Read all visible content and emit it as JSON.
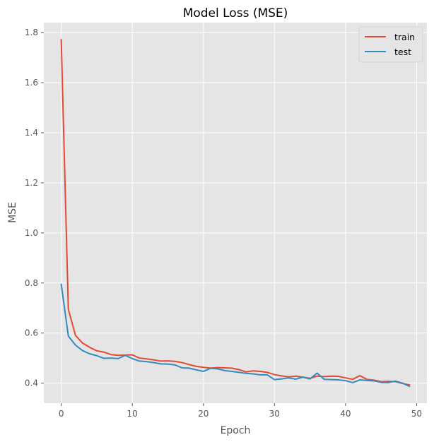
{
  "chart_data": {
    "type": "line",
    "title": "Model Loss (MSE)",
    "xlabel": "Epoch",
    "ylabel": "MSE",
    "xlim": [
      -2.45,
      51.45
    ],
    "ylim": [
      0.32,
      1.84
    ],
    "xticks": [
      0,
      10,
      20,
      30,
      40,
      50
    ],
    "yticks": [
      0.4,
      0.6,
      0.8,
      1.0,
      1.2,
      1.4,
      1.6,
      1.8
    ],
    "ytick_labels": [
      "0.4",
      "0.6",
      "0.8",
      "1.0",
      "1.2",
      "1.4",
      "1.6",
      "1.8"
    ],
    "grid": true,
    "legend_position": "top-right",
    "series": [
      {
        "name": "train",
        "color": "#E24A33",
        "x": [
          0,
          1,
          2,
          3,
          4,
          5,
          6,
          7,
          8,
          9,
          10,
          11,
          12,
          13,
          14,
          15,
          16,
          17,
          18,
          19,
          20,
          21,
          22,
          23,
          24,
          25,
          26,
          27,
          28,
          29,
          30,
          31,
          32,
          33,
          34,
          35,
          36,
          37,
          38,
          39,
          40,
          41,
          42,
          43,
          44,
          45,
          46,
          47,
          48,
          49
        ],
        "values": [
          1.772,
          0.695,
          0.591,
          0.56,
          0.543,
          0.529,
          0.524,
          0.514,
          0.511,
          0.512,
          0.513,
          0.5,
          0.497,
          0.493,
          0.488,
          0.489,
          0.487,
          0.482,
          0.474,
          0.467,
          0.463,
          0.46,
          0.462,
          0.461,
          0.46,
          0.454,
          0.445,
          0.449,
          0.447,
          0.443,
          0.434,
          0.429,
          0.425,
          0.428,
          0.424,
          0.419,
          0.428,
          0.426,
          0.428,
          0.427,
          0.421,
          0.415,
          0.43,
          0.415,
          0.412,
          0.406,
          0.407,
          0.406,
          0.399,
          0.393
        ]
      },
      {
        "name": "test",
        "color": "#348ABD",
        "x": [
          0,
          1,
          2,
          3,
          4,
          5,
          6,
          7,
          8,
          9,
          10,
          11,
          12,
          13,
          14,
          15,
          16,
          17,
          18,
          19,
          20,
          21,
          22,
          23,
          24,
          25,
          26,
          27,
          28,
          29,
          30,
          31,
          32,
          33,
          34,
          35,
          36,
          37,
          38,
          39,
          40,
          41,
          42,
          43,
          44,
          45,
          46,
          47,
          48,
          49
        ],
        "values": [
          0.795,
          0.588,
          0.552,
          0.53,
          0.517,
          0.51,
          0.499,
          0.5,
          0.498,
          0.511,
          0.498,
          0.488,
          0.486,
          0.482,
          0.477,
          0.476,
          0.473,
          0.461,
          0.46,
          0.453,
          0.447,
          0.459,
          0.457,
          0.45,
          0.447,
          0.443,
          0.439,
          0.437,
          0.433,
          0.433,
          0.414,
          0.417,
          0.421,
          0.416,
          0.424,
          0.417,
          0.44,
          0.415,
          0.414,
          0.413,
          0.41,
          0.402,
          0.413,
          0.411,
          0.409,
          0.403,
          0.402,
          0.408,
          0.4,
          0.387
        ]
      }
    ]
  }
}
